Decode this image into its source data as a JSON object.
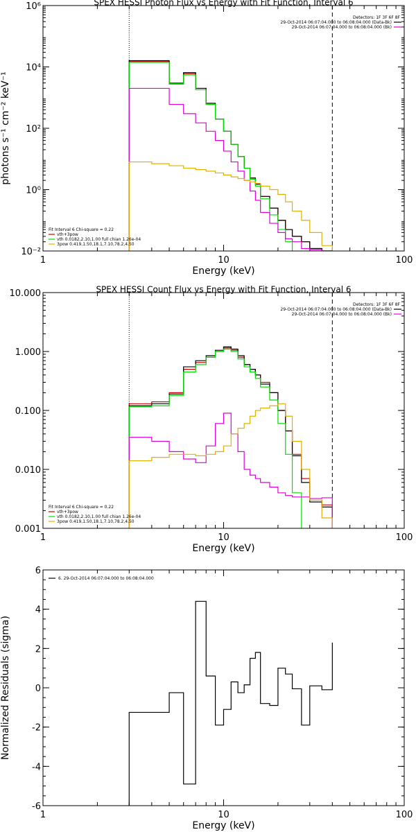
{
  "colors": {
    "black": "#000000",
    "red": "#cc0000",
    "green": "#00dd00",
    "magenta": "#dd00dd",
    "yellow": "#e0b000"
  },
  "chart_data": [
    {
      "type": "line",
      "title": "SPEX HESSI Photon Flux vs Energy with Fit Function, Interval 6",
      "xlabel": "Energy (keV)",
      "ylabel": "photons s⁻¹ cm⁻² keV⁻¹",
      "xscale": "log",
      "yscale": "log",
      "xlim": [
        1,
        100
      ],
      "ylim": [
        0.01,
        1000000
      ],
      "xticks": [
        {
          "v": 1,
          "label": "1"
        },
        {
          "v": 10,
          "label": "10"
        },
        {
          "v": 100,
          "label": "100"
        }
      ],
      "yticks": [
        {
          "v": 0.01,
          "label": "10⁻²"
        },
        {
          "v": 1,
          "label": "10⁰"
        },
        {
          "v": 100,
          "label": "10²"
        },
        {
          "v": 10000,
          "label": "10⁴"
        },
        {
          "v": 1000000,
          "label": "10⁶"
        }
      ],
      "vlines": [
        {
          "x": 3,
          "style": "dotted"
        },
        {
          "x": 40,
          "style": "dashed"
        }
      ],
      "legend_tr": {
        "detectors": "Detectors: 1F 3F 6F 8F",
        "entries": [
          {
            "text": "29-Oct-2014 06:07:04.000 to 06:08:04.000 (Data-Bk)",
            "color": "#000000"
          },
          {
            "text": "29-Oct-2014 06:07:04.000 to 06:08:04.000 (Bk)",
            "color": "#dd00dd"
          }
        ]
      },
      "legend_bl": {
        "header": "Fit Interval 6   Chi-square = 0.22",
        "entries": [
          {
            "text": "vth+3pow",
            "color": "#cc0000"
          },
          {
            "text": "vth 0.0182,2.10,1.00  full chian 1.26e-04",
            "color": "#00dd00"
          },
          {
            "text": "3pow 0.419,1.50,18.1,7.10,78.2,4.50",
            "color": "#e0b000"
          }
        ]
      },
      "edges": [
        3,
        4,
        5,
        6,
        7,
        8,
        9,
        10,
        11,
        12,
        13,
        14,
        15,
        16,
        18,
        20,
        22,
        24,
        27,
        30,
        35,
        40
      ],
      "series": [
        {
          "name": "vth+3pow",
          "color": "#cc0000",
          "values": [
            15000,
            15000,
            3000,
            6000,
            2000,
            600,
            200,
            80,
            30,
            12,
            5,
            2.4,
            1.5,
            0.6,
            0.25,
            0.1,
            0.05,
            0.03,
            0.02,
            0.012,
            0.01
          ]
        },
        {
          "color": "#000000",
          "values": [
            16000,
            16000,
            2800,
            6500,
            2000,
            650,
            200,
            80,
            30,
            12,
            5,
            2.4,
            1.5,
            0.6,
            0.25,
            0.1,
            0.05,
            0.03,
            0.02,
            0.012,
            0.01
          ]
        },
        {
          "color": "#00dd00",
          "values": [
            14000,
            14000,
            2900,
            5500,
            1800,
            600,
            200,
            80,
            30,
            12,
            5,
            2.2,
            1.3,
            0.5,
            0.15,
            0.05,
            0.02,
            0.007
          ]
        },
        {
          "color": "#dd00dd",
          "values": [
            2000,
            2000,
            600,
            300,
            150,
            80,
            40,
            18,
            8,
            4,
            2,
            0.9,
            0.45,
            0.18,
            0.08,
            0.04,
            0.025,
            0.02,
            0.012,
            0.011,
            0.01
          ]
        },
        {
          "color": "#e0b000",
          "values": [
            8,
            7,
            6,
            5,
            4.5,
            4,
            3.5,
            3,
            2.6,
            2.3,
            2,
            1.8,
            1.6,
            1.3,
            1.0,
            0.7,
            0.4,
            0.2,
            0.1,
            0.04,
            0.015
          ]
        }
      ]
    },
    {
      "type": "line",
      "title": "SPEX HESSI Count Flux vs Energy with Fit Function, Interval 6",
      "xlabel": "Energy (keV)",
      "xscale": "log",
      "yscale": "log",
      "xlim": [
        1,
        100
      ],
      "ylim": [
        0.001,
        10
      ],
      "xticks": [
        {
          "v": 1,
          "label": "1"
        },
        {
          "v": 10,
          "label": "10"
        },
        {
          "v": 100,
          "label": "100"
        }
      ],
      "yticks": [
        {
          "v": 0.001,
          "label": "0.001"
        },
        {
          "v": 0.01,
          "label": "0.010"
        },
        {
          "v": 0.1,
          "label": "0.100"
        },
        {
          "v": 1,
          "label": "1.000"
        },
        {
          "v": 10,
          "label": "10.000"
        }
      ],
      "vlines": [
        {
          "x": 3,
          "style": "dotted"
        },
        {
          "x": 40,
          "style": "dashed"
        }
      ],
      "legend_tr": {
        "detectors": "Detectors: 1F 3F 6F 8F",
        "entries": [
          {
            "text": "29-Oct-2014 06:07:04.000 to 06:08:04.000 (Data-Bk)",
            "color": "#000000"
          },
          {
            "text": "29-Oct-2014 06:07:04.000 to 06:08:04.000 (Bk)",
            "color": "#dd00dd"
          }
        ]
      },
      "legend_bl": {
        "header": "Fit Interval 6   Chi-square = 0.22",
        "entries": [
          {
            "text": "vth+3pow",
            "color": "#cc0000"
          },
          {
            "text": "vth 0.0182,2.10,1.00  full chian 1.26e-04",
            "color": "#00dd00"
          },
          {
            "text": "3pow 0.419,1.50,18.1,7.10,78.2,4.50",
            "color": "#e0b000"
          }
        ]
      },
      "edges": [
        3,
        4,
        5,
        6,
        7,
        8,
        9,
        10,
        11,
        12,
        13,
        14,
        15,
        16,
        18,
        20,
        22,
        24,
        27,
        30,
        35,
        40
      ],
      "series": [
        {
          "color": "#cc0000",
          "values": [
            0.13,
            0.14,
            0.2,
            0.5,
            0.65,
            0.8,
            1.0,
            1.15,
            1.05,
            0.8,
            0.6,
            0.5,
            0.4,
            0.3,
            0.2,
            0.1,
            0.045,
            0.018,
            0.007,
            0.003,
            0.0025
          ]
        },
        {
          "color": "#000000",
          "values": [
            0.12,
            0.13,
            0.19,
            0.55,
            0.7,
            0.85,
            1.05,
            1.2,
            1.1,
            0.85,
            0.6,
            0.5,
            0.4,
            0.28,
            0.2,
            0.1,
            0.045,
            0.017,
            0.006,
            0.0028,
            0.0023
          ]
        },
        {
          "color": "#00dd00",
          "values": [
            0.115,
            0.12,
            0.18,
            0.45,
            0.6,
            0.8,
            1.0,
            1.1,
            1.0,
            0.75,
            0.55,
            0.45,
            0.35,
            0.25,
            0.15,
            0.06,
            0.018,
            0.004
          ]
        },
        {
          "color": "#dd00dd",
          "values": [
            0.035,
            0.03,
            0.02,
            0.015,
            0.013,
            0.025,
            0.06,
            0.09,
            0.04,
            0.02,
            0.01,
            0.008,
            0.007,
            0.006,
            0.005,
            0.004,
            0.0036,
            0.0034,
            0.0034,
            0.0032,
            0.0033
          ]
        },
        {
          "color": "#e0b000",
          "values": [
            0.014,
            0.016,
            0.018,
            0.018,
            0.017,
            0.018,
            0.02,
            0.025,
            0.04,
            0.05,
            0.06,
            0.08,
            0.1,
            0.11,
            0.12,
            0.13,
            0.08,
            0.03,
            0.01,
            0.003,
            0.0015
          ]
        }
      ]
    },
    {
      "type": "line",
      "xlabel": "Energy (keV)",
      "ylabel": "Normalized Residuals (sigma)",
      "xscale": "log",
      "yscale": "linear",
      "xlim": [
        1,
        100
      ],
      "ylim": [
        -6,
        6
      ],
      "xticks": [
        {
          "v": 1,
          "label": "1"
        },
        {
          "v": 10,
          "label": "10"
        },
        {
          "v": 100,
          "label": "100"
        }
      ],
      "yticks": [
        {
          "v": -6,
          "label": "-6"
        },
        {
          "v": -4,
          "label": "-4"
        },
        {
          "v": -2,
          "label": "-2"
        },
        {
          "v": 0,
          "label": "0"
        },
        {
          "v": 2,
          "label": "2"
        },
        {
          "v": 4,
          "label": "4"
        },
        {
          "v": 6,
          "label": "6"
        }
      ],
      "legend_tl": {
        "entries": [
          {
            "text": "6. 29-Oct-2014 06:07:04.000 to 06:08:04.000",
            "color": "#000000"
          }
        ]
      },
      "edges": [
        3,
        4,
        5,
        6,
        7,
        8,
        9,
        10,
        11,
        12,
        13,
        14,
        15,
        16,
        18,
        20,
        22,
        24,
        27,
        30,
        35,
        40
      ],
      "series": [
        {
          "color": "#000000",
          "values": [
            -1.25,
            -1.25,
            -0.25,
            -4.9,
            4.4,
            0.6,
            -1.9,
            -1.1,
            0.3,
            -0.25,
            0.15,
            1.5,
            1.8,
            -0.8,
            -0.9,
            1.0,
            0.7,
            -0.05,
            -1.9,
            0.1,
            -0.1,
            2.3
          ]
        }
      ]
    }
  ]
}
